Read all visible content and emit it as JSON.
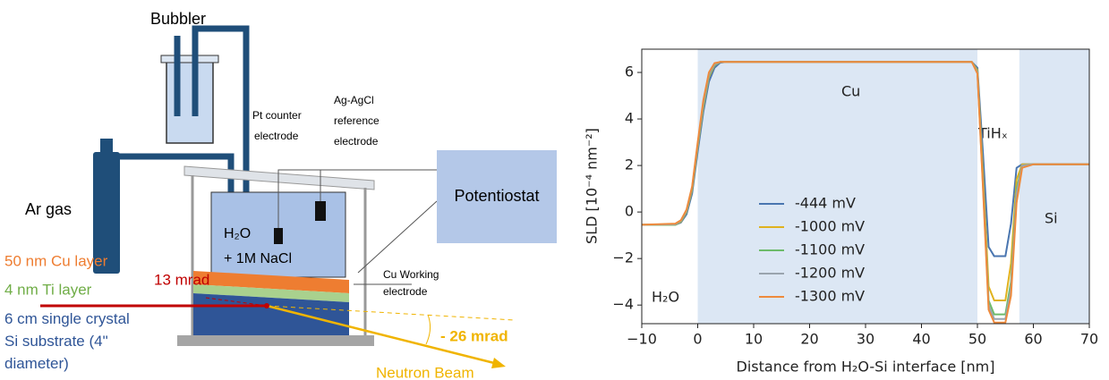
{
  "diagram": {
    "bubbler": "Bubbler",
    "ar_gas": "Ar gas",
    "pt_counter": [
      "Pt counter",
      "electrode"
    ],
    "ag_reference": [
      "Ag-AgCl",
      "reference",
      "electrode"
    ],
    "potentiostat": "Potentiostat",
    "electrolyte": [
      "H₂O",
      "+ 1M NaCl"
    ],
    "cu_layer": "50 nm Cu layer",
    "ti_layer": "4 nm Ti layer",
    "angle_in": "13 mrad",
    "substrate": [
      "6 cm single crystal",
      "Si substrate (4\"",
      "diameter)"
    ],
    "working_electrode": [
      "Cu Working",
      "electrode"
    ],
    "angle_out": "- 26 mrad",
    "beam": "Neutron Beam"
  },
  "chart_data": {
    "type": "line",
    "ylabel": "SLD [10⁻⁴ nm⁻²]",
    "xlabel": "Distance from H₂O-Si interface [nm]",
    "annotations": [
      "Cu",
      "TiHₓ",
      "Si",
      "H₂O"
    ],
    "shaded_regions": [
      [
        0,
        50
      ],
      [
        57.5,
        70
      ]
    ],
    "shade_color": "#dce7f4",
    "xlim": [
      -10,
      70
    ],
    "ylim": [
      -4.8,
      7
    ],
    "xticks": [
      {
        "value": -10,
        "label": "−10"
      },
      0,
      10,
      20,
      30,
      40,
      50,
      60,
      70
    ],
    "yticks": [
      {
        "value": -4,
        "label": "−4"
      },
      {
        "value": -2,
        "label": "−2"
      },
      0,
      2,
      4,
      6
    ],
    "x": [
      -10,
      -4,
      -3,
      -2,
      -1,
      0,
      1,
      2,
      3,
      4,
      5,
      10,
      20,
      30,
      40,
      49,
      50,
      51,
      52,
      53,
      55,
      56,
      57,
      58,
      60,
      70
    ],
    "series": [
      {
        "name": "-444 mV",
        "color": "#4a76b0",
        "values": [
          -0.55,
          -0.55,
          -0.45,
          -0.1,
          0.8,
          2.6,
          4.3,
          5.6,
          6.2,
          6.42,
          6.45,
          6.45,
          6.45,
          6.45,
          6.45,
          6.45,
          6.2,
          2.5,
          -1.5,
          -1.9,
          -1.9,
          -0.5,
          1.9,
          2.05,
          2.05,
          2.05
        ]
      },
      {
        "name": "-1000 mV",
        "color": "#e0b21e",
        "values": [
          -0.55,
          -0.55,
          -0.42,
          0,
          0.95,
          2.8,
          4.5,
          5.8,
          6.3,
          6.45,
          6.45,
          6.45,
          6.45,
          6.45,
          6.45,
          6.45,
          6.1,
          1.6,
          -3.2,
          -3.8,
          -3.8,
          -2.2,
          1.4,
          2.05,
          2.05,
          2.05
        ]
      },
      {
        "name": "-1100 mV",
        "color": "#6dbb6a",
        "values": [
          -0.55,
          -0.55,
          -0.4,
          0.02,
          1.0,
          2.85,
          4.55,
          5.85,
          6.32,
          6.45,
          6.45,
          6.45,
          6.45,
          6.45,
          6.45,
          6.45,
          6.05,
          1.3,
          -3.8,
          -4.4,
          -4.4,
          -3,
          1.0,
          2.0,
          2.05,
          2.05
        ]
      },
      {
        "name": "-1200 mV",
        "color": "#9aa4ae",
        "values": [
          -0.55,
          -0.53,
          -0.38,
          0.05,
          1.05,
          2.9,
          4.65,
          5.9,
          6.35,
          6.45,
          6.45,
          6.45,
          6.45,
          6.45,
          6.45,
          6.45,
          6.0,
          1.1,
          -4.0,
          -4.6,
          -4.6,
          -3.3,
          0.8,
          2.0,
          2.05,
          2.05
        ]
      },
      {
        "name": "-1300 mV",
        "color": "#ee8a3c",
        "values": [
          -0.55,
          -0.5,
          -0.35,
          0.1,
          1.1,
          3.0,
          4.8,
          6.0,
          6.4,
          6.45,
          6.45,
          6.45,
          6.45,
          6.45,
          6.45,
          6.45,
          5.95,
          1.0,
          -4.2,
          -4.75,
          -4.75,
          -3.6,
          0.4,
          1.9,
          2.05,
          2.05
        ]
      }
    ]
  }
}
